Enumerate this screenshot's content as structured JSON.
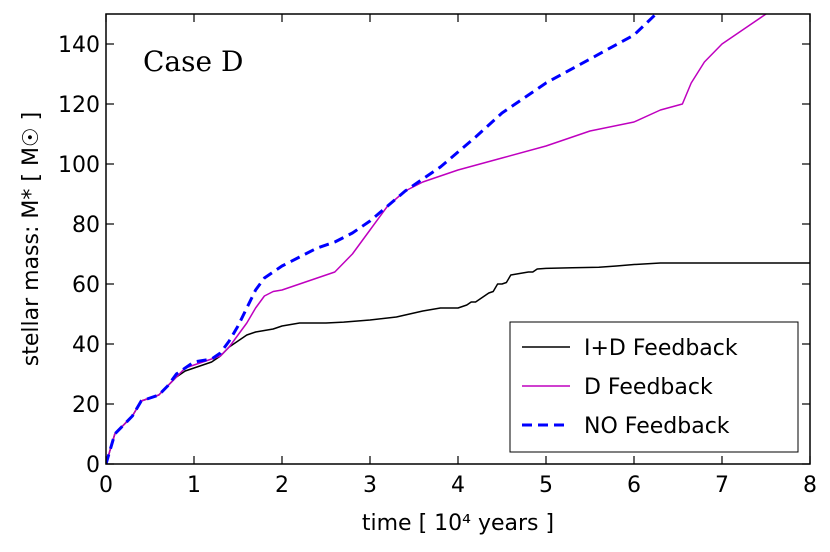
{
  "chart_data": {
    "type": "line",
    "title": "",
    "annotation": "Case D",
    "xlabel": "time [ 10⁴  years ]",
    "ylabel": "stellar mass: M* [ M☉ ]",
    "xlim": [
      0,
      8
    ],
    "ylim": [
      0,
      150
    ],
    "xticks": [
      0,
      1,
      2,
      3,
      4,
      5,
      6,
      7,
      8
    ],
    "yticks": [
      0,
      20,
      40,
      60,
      80,
      100,
      120,
      140
    ],
    "xtick_labels": [
      "0",
      "1",
      "2",
      "3",
      "4",
      "5",
      "6",
      "7",
      "8"
    ],
    "ytick_labels": [
      "0",
      "20",
      "40",
      "60",
      "80",
      "100",
      "120",
      "140"
    ],
    "grid": false,
    "legend_position": "bottom-right",
    "series": [
      {
        "name": "I+D Feedback",
        "color": "#000000",
        "dash": "solid",
        "x": [
          0,
          0.1,
          0.2,
          0.3,
          0.4,
          0.5,
          0.6,
          0.7,
          0.8,
          0.9,
          1.0,
          1.1,
          1.2,
          1.3,
          1.4,
          1.5,
          1.6,
          1.7,
          1.8,
          1.9,
          2.0,
          2.1,
          2.2,
          2.3,
          2.5,
          2.7,
          3.0,
          3.3,
          3.6,
          3.8,
          4.0,
          4.1,
          4.15,
          4.2,
          4.3,
          4.35,
          4.4,
          4.45,
          4.5,
          4.55,
          4.6,
          4.7,
          4.8,
          4.85,
          4.9,
          5.0,
          5.3,
          5.6,
          5.8,
          6.0,
          6.3,
          7.0,
          8.0
        ],
        "y": [
          0,
          10,
          13,
          16,
          21,
          22,
          23,
          26,
          29,
          31,
          32,
          33,
          34,
          36,
          39,
          41,
          43,
          44,
          44.5,
          45,
          46,
          46.5,
          47,
          47,
          47,
          47.3,
          48,
          49,
          51,
          52,
          52,
          53,
          54,
          54,
          56,
          57,
          57.5,
          60,
          60,
          60.5,
          63,
          63.5,
          64,
          64,
          65,
          65.2,
          65.4,
          65.6,
          66,
          66.5,
          67,
          67,
          67
        ]
      },
      {
        "name": "D Feedback",
        "color": "#bf00bf",
        "dash": "solid",
        "x": [
          0,
          0.1,
          0.2,
          0.3,
          0.4,
          0.5,
          0.6,
          0.7,
          0.8,
          0.9,
          1.0,
          1.1,
          1.2,
          1.3,
          1.4,
          1.5,
          1.6,
          1.7,
          1.8,
          1.9,
          2.0,
          2.2,
          2.4,
          2.6,
          2.8,
          3.0,
          3.2,
          3.4,
          3.6,
          3.8,
          4.0,
          4.5,
          5.0,
          5.5,
          6.0,
          6.3,
          6.55,
          6.65,
          6.8,
          7.0,
          7.3,
          7.5
        ],
        "y": [
          0,
          10,
          13,
          16,
          21,
          22,
          23,
          26,
          29,
          32,
          33,
          34,
          35,
          36,
          39,
          43,
          47,
          52,
          56,
          57.5,
          58,
          60,
          62,
          64,
          70,
          78,
          86,
          91,
          94,
          96,
          98,
          102,
          106,
          111,
          114,
          118,
          120,
          127,
          134,
          140,
          146,
          150
        ]
      },
      {
        "name": "NO Feedback",
        "color": "#0000ff",
        "dash": "dashed",
        "x": [
          0,
          0.1,
          0.2,
          0.3,
          0.4,
          0.5,
          0.6,
          0.7,
          0.8,
          0.9,
          1.0,
          1.1,
          1.2,
          1.3,
          1.4,
          1.5,
          1.6,
          1.7,
          1.8,
          1.9,
          2.0,
          2.2,
          2.4,
          2.6,
          2.8,
          3.0,
          3.2,
          3.4,
          3.6,
          3.8,
          4.0,
          4.2,
          4.5,
          5.0,
          5.5,
          6.0,
          6.25
        ],
        "y": [
          0,
          10,
          13,
          16,
          21,
          22,
          23,
          26,
          30,
          32,
          34,
          34.5,
          35,
          37,
          41,
          46,
          52,
          58,
          62,
          64,
          66,
          69,
          72,
          74,
          77,
          81,
          86,
          91,
          95,
          99,
          104,
          109,
          117,
          127,
          135,
          143,
          150
        ]
      }
    ]
  }
}
